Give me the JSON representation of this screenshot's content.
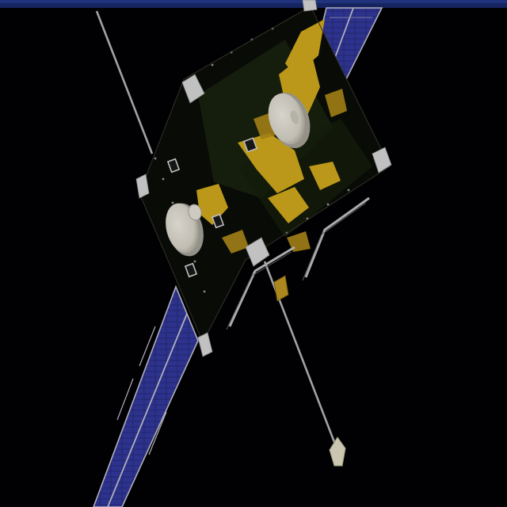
{
  "scene": {
    "subject": "satellite-spacecraft",
    "colors": {
      "space": "#020204",
      "top_strip": "#1a2a6e",
      "body": "#0b0d08",
      "mli_gold": "#d6ad1e",
      "mli_dark_green": "#1d2a10",
      "solar_cell": "#2a2f86",
      "solar_cell_light": "#3d44a8",
      "solar_frame": "#c9c9d6",
      "antenna_dish": "#e9e6dc",
      "antenna_shadow": "#a9a69c",
      "boom": "#b9b9b9",
      "probe_tip": "#e6e2c8",
      "fitting": "#dcdcdc"
    }
  }
}
